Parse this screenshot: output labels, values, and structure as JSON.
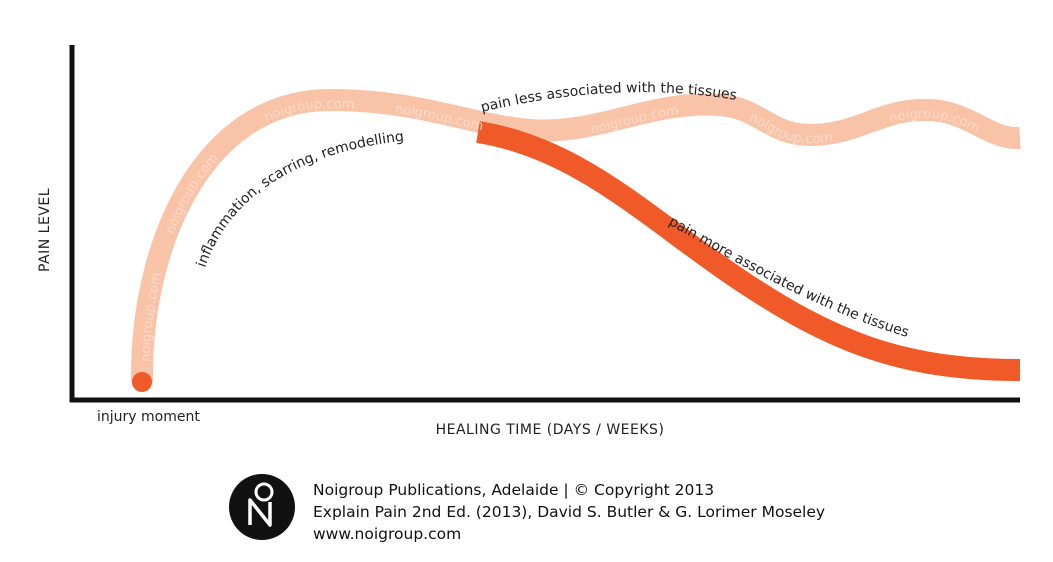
{
  "axes": {
    "y_label": "PAIN LEVEL",
    "x_label": "HEALING TIME (DAYS / WEEKS)"
  },
  "annotations": {
    "start": "injury moment",
    "early": "inflammation, scarring, remodelling",
    "upper": "pain less associated with the tissues",
    "lower": "pain more associated with the tissues"
  },
  "watermark": "noigroup.com",
  "footer": {
    "lines": [
      "Noigroup Publications, Adelaide | © Copyright 2013",
      "Explain Pain 2nd Ed. (2013), David S. Butler & G. Lorimer Moseley",
      "www.noigroup.com"
    ]
  }
}
